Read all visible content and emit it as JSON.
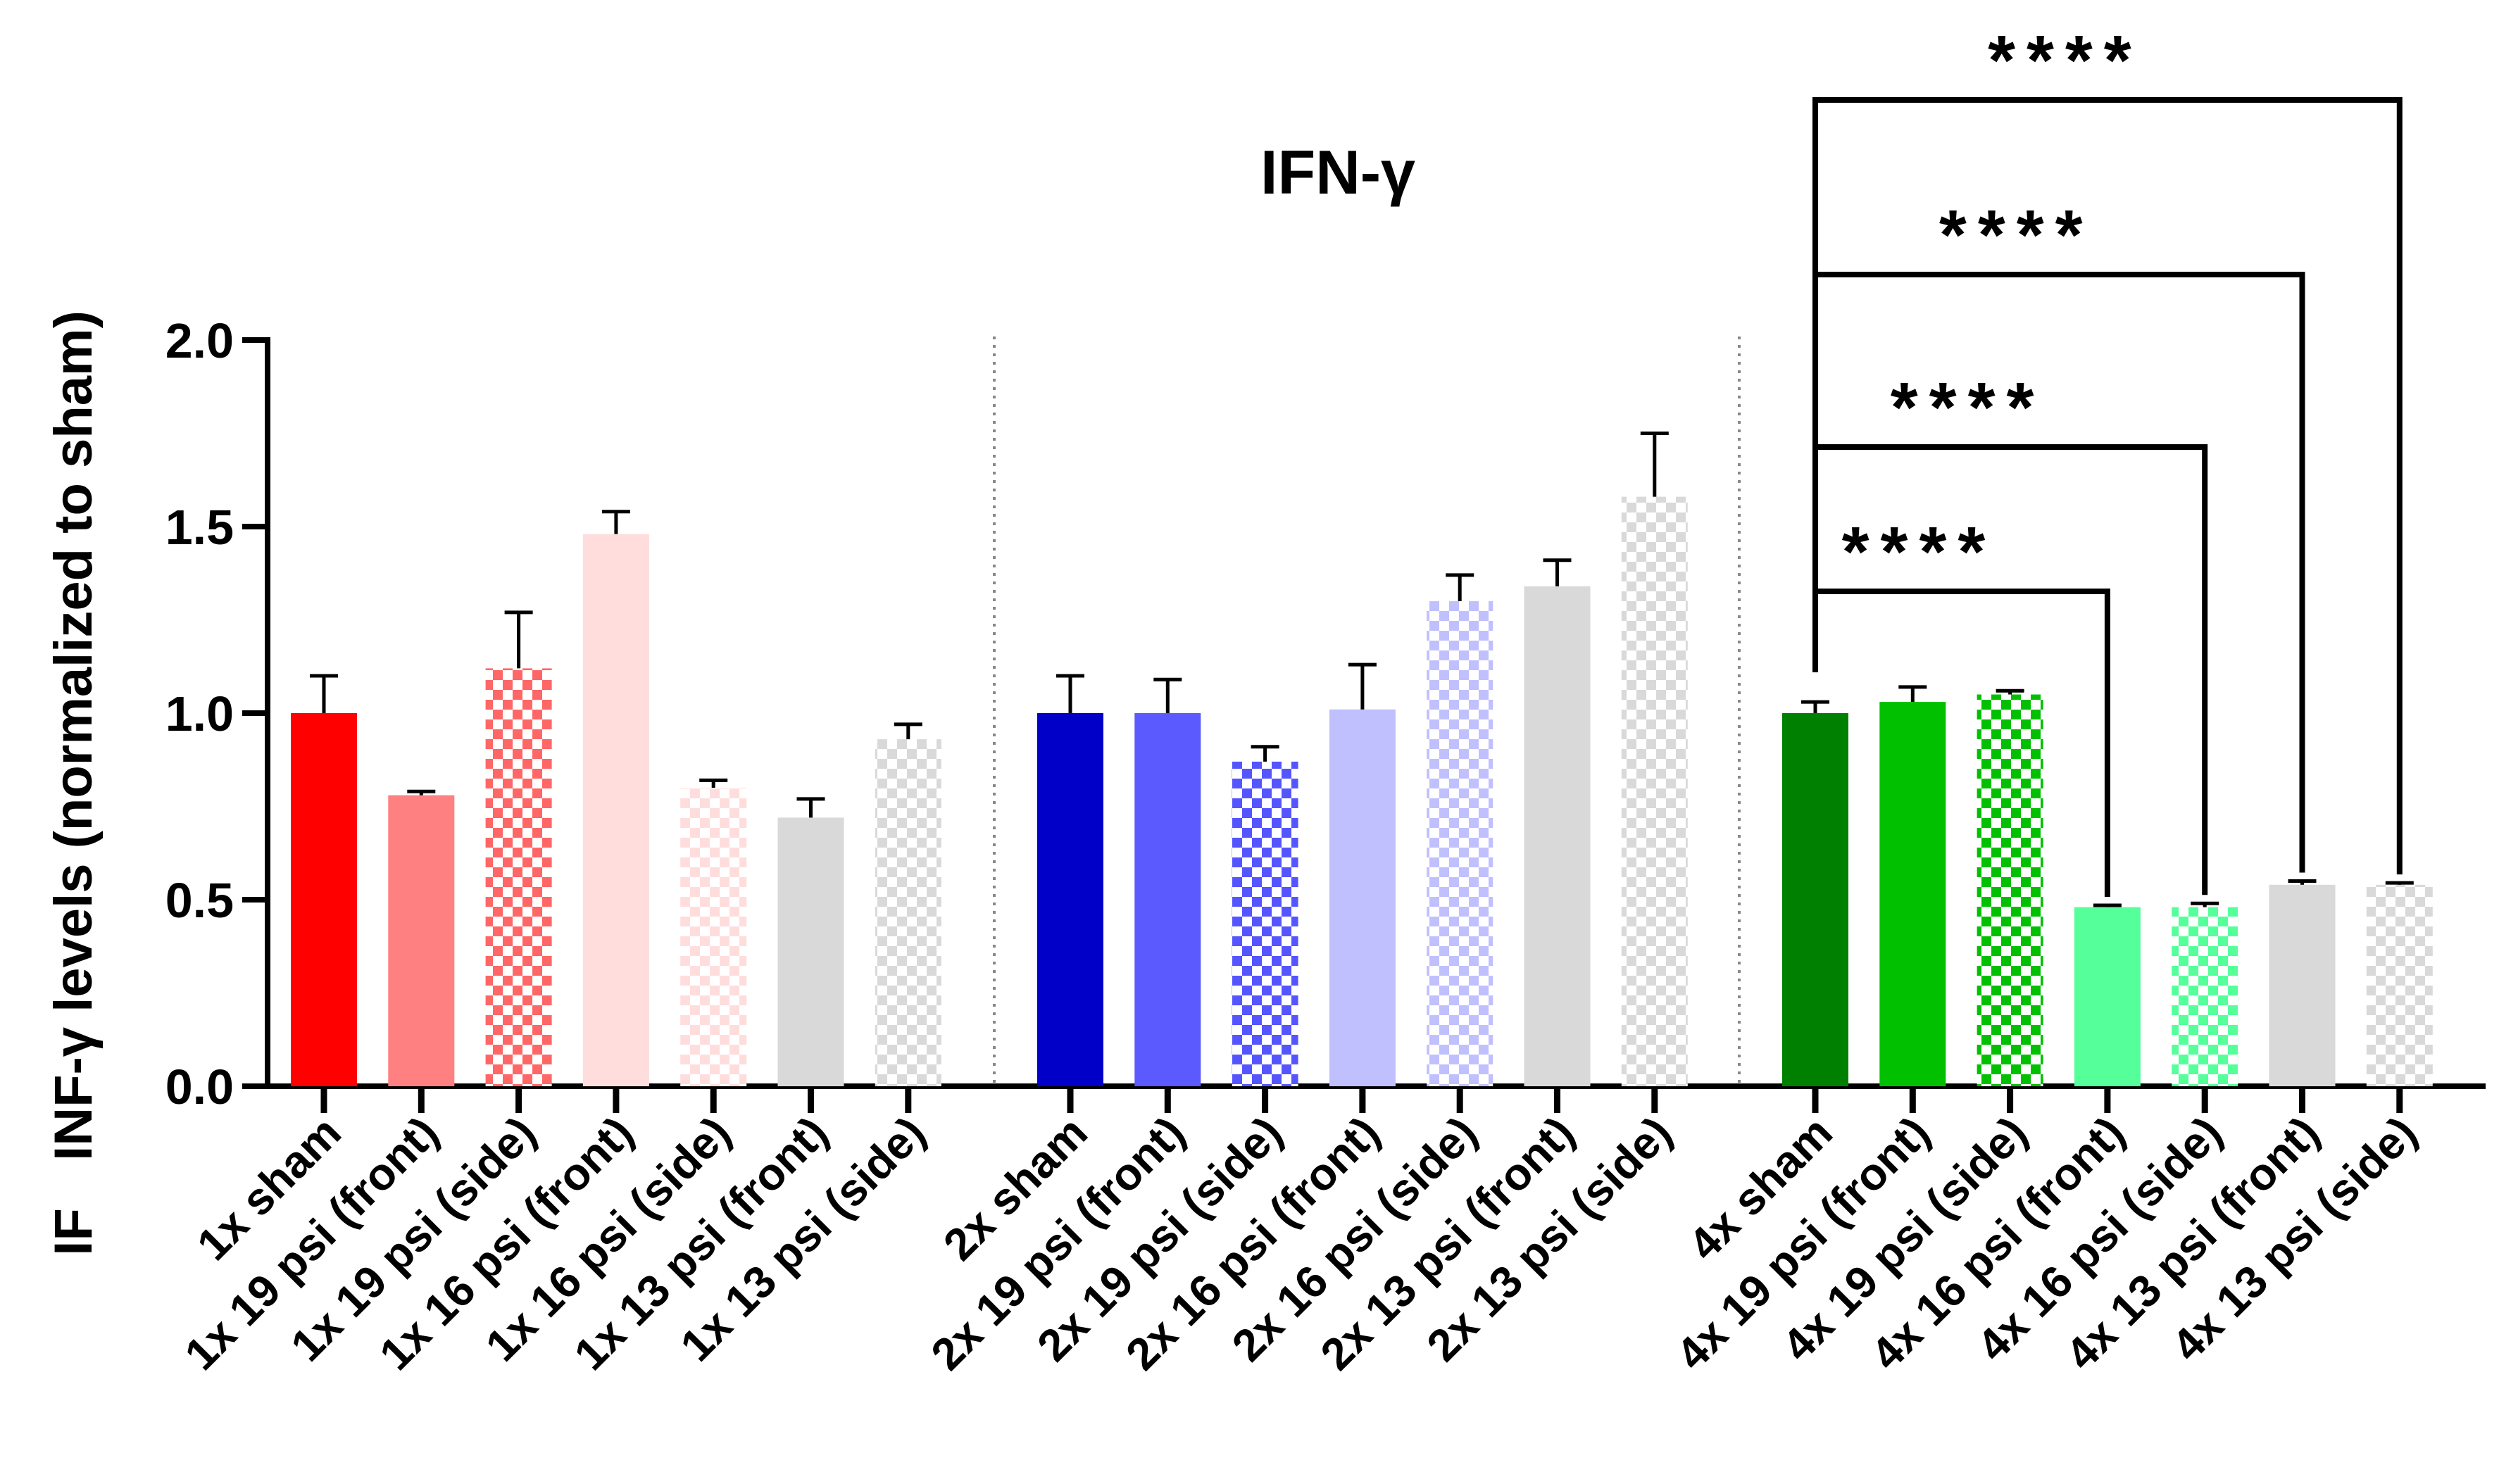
{
  "chart_data": {
    "type": "bar",
    "title": "IFN-γ",
    "ylabel": "INF-γ levels (normalized to sham)",
    "ylabel_prefix": "IF",
    "xlabel": "",
    "ylim": [
      0,
      2.0
    ],
    "yticks": [
      "0.0",
      "0.5",
      "1.0",
      "1.5",
      "2.0"
    ],
    "ytick_values": [
      0,
      0.5,
      1.0,
      1.5,
      2.0
    ],
    "grid": false,
    "groups": [
      {
        "name": "1x",
        "categories": [
          "1x sham",
          "1x 19 psi (front)",
          "1x 19 psi (side)",
          "1x 16 psi (front)",
          "1x 16 psi (side)",
          "1x 13 psi (front)",
          "1x 13 psi (side)"
        ],
        "values": [
          1.0,
          0.78,
          1.12,
          1.48,
          0.8,
          0.72,
          0.93
        ],
        "errors": [
          0.1,
          0.01,
          0.15,
          0.06,
          0.02,
          0.05,
          0.04
        ],
        "colors": [
          "#ff0000",
          "#ff8080",
          "#ff6666",
          "#ffdddd",
          "#ffdddd",
          "#d9d9d9",
          "#d9d9d9"
        ],
        "patterns": [
          "solid",
          "solid",
          "checker",
          "solid",
          "checker",
          "solid",
          "checker"
        ]
      },
      {
        "name": "2x",
        "categories": [
          "2x sham",
          "2x 19 psi (front)",
          "2x 19 psi (side)",
          "2x 16 psi (front)",
          "2x 16 psi (side)",
          "2x 13 psi (front)",
          "2x 13 psi (side)"
        ],
        "values": [
          1.0,
          1.0,
          0.87,
          1.01,
          1.3,
          1.34,
          1.58
        ],
        "errors": [
          0.1,
          0.09,
          0.04,
          0.12,
          0.07,
          0.07,
          0.17
        ],
        "colors": [
          "#0000c8",
          "#5a5aff",
          "#5555ff",
          "#c0c0ff",
          "#c0c0ff",
          "#d9d9d9",
          "#d9d9d9"
        ],
        "patterns": [
          "solid",
          "solid",
          "checker",
          "solid",
          "checker",
          "solid",
          "checker"
        ]
      },
      {
        "name": "4x",
        "categories": [
          "4x sham",
          "4x 19 psi (front)",
          "4x 19 psi (side)",
          "4x 16 psi (front)",
          "4x 16 psi (side)",
          "4x 13 psi (front)",
          "4x 13 psi (side)"
        ],
        "values": [
          1.0,
          1.03,
          1.05,
          0.48,
          0.48,
          0.54,
          0.54
        ],
        "errors": [
          0.03,
          0.04,
          0.01,
          0.005,
          0.01,
          0.01,
          0.005
        ],
        "colors": [
          "#008000",
          "#00c000",
          "#00c000",
          "#55ff99",
          "#55ff99",
          "#d9d9d9",
          "#d9d9d9"
        ],
        "patterns": [
          "solid",
          "solid",
          "checker",
          "solid",
          "checker",
          "solid",
          "checker"
        ]
      }
    ],
    "significance": [
      {
        "group": 2,
        "from": 0,
        "to": 3,
        "label": "****"
      },
      {
        "group": 2,
        "from": 0,
        "to": 4,
        "label": "****"
      },
      {
        "group": 2,
        "from": 0,
        "to": 5,
        "label": "****"
      },
      {
        "group": 2,
        "from": 0,
        "to": 6,
        "label": "****"
      }
    ]
  }
}
